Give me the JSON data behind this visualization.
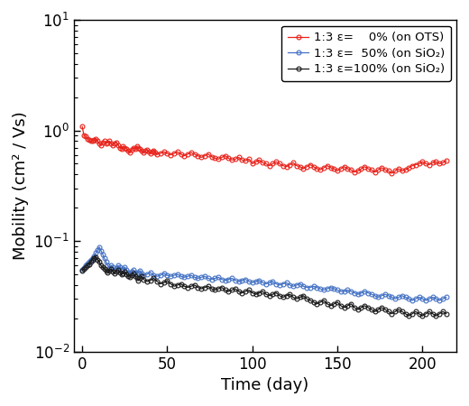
{
  "title": "",
  "xlabel": "Time (day)",
  "ylabel": "Mobility (cm² / Vs)",
  "xlim": [
    -5,
    220
  ],
  "ylim_log": [
    0.01,
    10
  ],
  "colors": {
    "red": "#e8221a",
    "blue": "#4472c4",
    "black": "#1a1a1a"
  },
  "legend_labels": [
    "1:3 ε=    0% (on OTS)",
    "1:3 ε=  50% (on SiO₂)",
    "1:3 ε=100% (on SiO₂)"
  ],
  "red_x": [
    0,
    1,
    2,
    3,
    4,
    5,
    6,
    7,
    8,
    9,
    10,
    11,
    12,
    13,
    14,
    15,
    16,
    17,
    18,
    19,
    20,
    21,
    22,
    23,
    24,
    25,
    26,
    27,
    28,
    29,
    30,
    31,
    32,
    33,
    34,
    35,
    36,
    37,
    38,
    39,
    40,
    41,
    42,
    43,
    44,
    46,
    48,
    50,
    52,
    54,
    56,
    58,
    60,
    62,
    64,
    66,
    68,
    70,
    72,
    74,
    76,
    78,
    80,
    82,
    84,
    86,
    88,
    90,
    92,
    94,
    96,
    98,
    100,
    102,
    104,
    106,
    108,
    110,
    112,
    114,
    116,
    118,
    120,
    122,
    124,
    126,
    128,
    130,
    132,
    134,
    136,
    138,
    140,
    142,
    144,
    146,
    148,
    150,
    152,
    154,
    156,
    158,
    160,
    162,
    164,
    166,
    168,
    170,
    172,
    174,
    176,
    178,
    180,
    182,
    184,
    186,
    188,
    190,
    192,
    194,
    196,
    198,
    200,
    202,
    204,
    206,
    208,
    210,
    212,
    214
  ],
  "red_y": [
    1.08,
    0.9,
    0.88,
    0.84,
    0.82,
    0.8,
    0.8,
    0.82,
    0.84,
    0.8,
    0.76,
    0.74,
    0.78,
    0.8,
    0.76,
    0.78,
    0.8,
    0.76,
    0.74,
    0.76,
    0.78,
    0.74,
    0.7,
    0.68,
    0.72,
    0.7,
    0.68,
    0.65,
    0.63,
    0.67,
    0.7,
    0.68,
    0.72,
    0.7,
    0.68,
    0.65,
    0.63,
    0.65,
    0.67,
    0.64,
    0.62,
    0.64,
    0.66,
    0.63,
    0.61,
    0.62,
    0.64,
    0.62,
    0.6,
    0.62,
    0.64,
    0.61,
    0.59,
    0.61,
    0.63,
    0.61,
    0.59,
    0.57,
    0.59,
    0.61,
    0.58,
    0.56,
    0.55,
    0.57,
    0.59,
    0.56,
    0.54,
    0.55,
    0.57,
    0.54,
    0.53,
    0.55,
    0.5,
    0.52,
    0.54,
    0.51,
    0.5,
    0.48,
    0.5,
    0.52,
    0.5,
    0.48,
    0.47,
    0.49,
    0.51,
    0.48,
    0.47,
    0.45,
    0.47,
    0.49,
    0.47,
    0.45,
    0.44,
    0.46,
    0.48,
    0.46,
    0.45,
    0.43,
    0.45,
    0.47,
    0.45,
    0.44,
    0.42,
    0.43,
    0.45,
    0.47,
    0.45,
    0.44,
    0.42,
    0.44,
    0.46,
    0.44,
    0.43,
    0.41,
    0.43,
    0.45,
    0.43,
    0.44,
    0.46,
    0.48,
    0.49,
    0.5,
    0.52,
    0.5,
    0.49,
    0.51,
    0.52,
    0.5,
    0.51,
    0.53
  ],
  "blue_x": [
    0,
    1,
    2,
    3,
    4,
    5,
    6,
    7,
    8,
    9,
    10,
    11,
    12,
    13,
    14,
    15,
    16,
    17,
    18,
    19,
    20,
    21,
    22,
    23,
    24,
    25,
    26,
    27,
    28,
    29,
    30,
    31,
    32,
    33,
    34,
    35,
    36,
    38,
    40,
    42,
    44,
    46,
    48,
    50,
    52,
    54,
    56,
    58,
    60,
    62,
    64,
    66,
    68,
    70,
    72,
    74,
    76,
    78,
    80,
    82,
    84,
    86,
    88,
    90,
    92,
    94,
    96,
    98,
    100,
    102,
    104,
    106,
    108,
    110,
    112,
    114,
    116,
    118,
    120,
    122,
    124,
    126,
    128,
    130,
    132,
    134,
    136,
    138,
    140,
    142,
    144,
    146,
    148,
    150,
    152,
    154,
    156,
    158,
    160,
    162,
    164,
    166,
    168,
    170,
    172,
    174,
    176,
    178,
    180,
    182,
    184,
    186,
    188,
    190,
    192,
    194,
    196,
    198,
    200,
    202,
    204,
    206,
    208,
    210,
    212,
    214
  ],
  "blue_y": [
    0.055,
    0.057,
    0.06,
    0.063,
    0.065,
    0.067,
    0.07,
    0.073,
    0.078,
    0.083,
    0.088,
    0.082,
    0.076,
    0.07,
    0.065,
    0.06,
    0.057,
    0.06,
    0.058,
    0.055,
    0.057,
    0.06,
    0.058,
    0.055,
    0.056,
    0.058,
    0.055,
    0.052,
    0.051,
    0.053,
    0.055,
    0.052,
    0.05,
    0.052,
    0.054,
    0.051,
    0.049,
    0.05,
    0.052,
    0.049,
    0.048,
    0.049,
    0.051,
    0.049,
    0.048,
    0.049,
    0.05,
    0.048,
    0.047,
    0.048,
    0.049,
    0.047,
    0.046,
    0.047,
    0.048,
    0.046,
    0.045,
    0.046,
    0.047,
    0.045,
    0.044,
    0.045,
    0.046,
    0.044,
    0.043,
    0.044,
    0.045,
    0.043,
    0.042,
    0.043,
    0.044,
    0.042,
    0.041,
    0.042,
    0.043,
    0.041,
    0.04,
    0.041,
    0.042,
    0.04,
    0.039,
    0.04,
    0.041,
    0.039,
    0.038,
    0.038,
    0.039,
    0.038,
    0.037,
    0.036,
    0.037,
    0.038,
    0.037,
    0.036,
    0.035,
    0.035,
    0.036,
    0.035,
    0.034,
    0.033,
    0.034,
    0.035,
    0.034,
    0.033,
    0.032,
    0.031,
    0.032,
    0.033,
    0.032,
    0.031,
    0.03,
    0.031,
    0.032,
    0.031,
    0.03,
    0.029,
    0.03,
    0.031,
    0.03,
    0.029,
    0.03,
    0.031,
    0.03,
    0.029,
    0.03,
    0.031
  ],
  "black_x": [
    0,
    1,
    2,
    3,
    4,
    5,
    6,
    7,
    8,
    9,
    10,
    11,
    12,
    13,
    14,
    15,
    16,
    17,
    18,
    19,
    20,
    21,
    22,
    23,
    24,
    25,
    26,
    27,
    28,
    29,
    30,
    31,
    32,
    33,
    34,
    35,
    36,
    38,
    40,
    42,
    44,
    46,
    48,
    50,
    52,
    54,
    56,
    58,
    60,
    62,
    64,
    66,
    68,
    70,
    72,
    74,
    76,
    78,
    80,
    82,
    84,
    86,
    88,
    90,
    92,
    94,
    96,
    98,
    100,
    102,
    104,
    106,
    108,
    110,
    112,
    114,
    116,
    118,
    120,
    122,
    124,
    126,
    128,
    130,
    132,
    134,
    136,
    138,
    140,
    142,
    144,
    146,
    148,
    150,
    152,
    154,
    156,
    158,
    160,
    162,
    164,
    166,
    168,
    170,
    172,
    174,
    176,
    178,
    180,
    182,
    184,
    186,
    188,
    190,
    192,
    194,
    196,
    198,
    200,
    202,
    204,
    206,
    208,
    210,
    212,
    214
  ],
  "black_y": [
    0.054,
    0.056,
    0.058,
    0.06,
    0.062,
    0.065,
    0.068,
    0.07,
    0.072,
    0.068,
    0.065,
    0.06,
    0.058,
    0.056,
    0.054,
    0.052,
    0.054,
    0.056,
    0.053,
    0.051,
    0.053,
    0.055,
    0.052,
    0.05,
    0.051,
    0.053,
    0.05,
    0.048,
    0.047,
    0.049,
    0.051,
    0.048,
    0.046,
    0.044,
    0.046,
    0.048,
    0.045,
    0.043,
    0.044,
    0.046,
    0.043,
    0.041,
    0.042,
    0.044,
    0.041,
    0.039,
    0.04,
    0.041,
    0.039,
    0.038,
    0.039,
    0.04,
    0.038,
    0.037,
    0.038,
    0.039,
    0.037,
    0.036,
    0.037,
    0.038,
    0.036,
    0.035,
    0.036,
    0.037,
    0.035,
    0.034,
    0.035,
    0.036,
    0.034,
    0.033,
    0.034,
    0.035,
    0.033,
    0.032,
    0.033,
    0.034,
    0.032,
    0.031,
    0.032,
    0.033,
    0.031,
    0.03,
    0.031,
    0.032,
    0.03,
    0.029,
    0.028,
    0.027,
    0.028,
    0.029,
    0.027,
    0.026,
    0.027,
    0.028,
    0.026,
    0.025,
    0.026,
    0.027,
    0.025,
    0.024,
    0.025,
    0.026,
    0.025,
    0.024,
    0.023,
    0.024,
    0.025,
    0.024,
    0.023,
    0.022,
    0.023,
    0.024,
    0.023,
    0.022,
    0.021,
    0.022,
    0.023,
    0.022,
    0.021,
    0.022,
    0.023,
    0.022,
    0.021,
    0.022,
    0.023,
    0.022
  ]
}
